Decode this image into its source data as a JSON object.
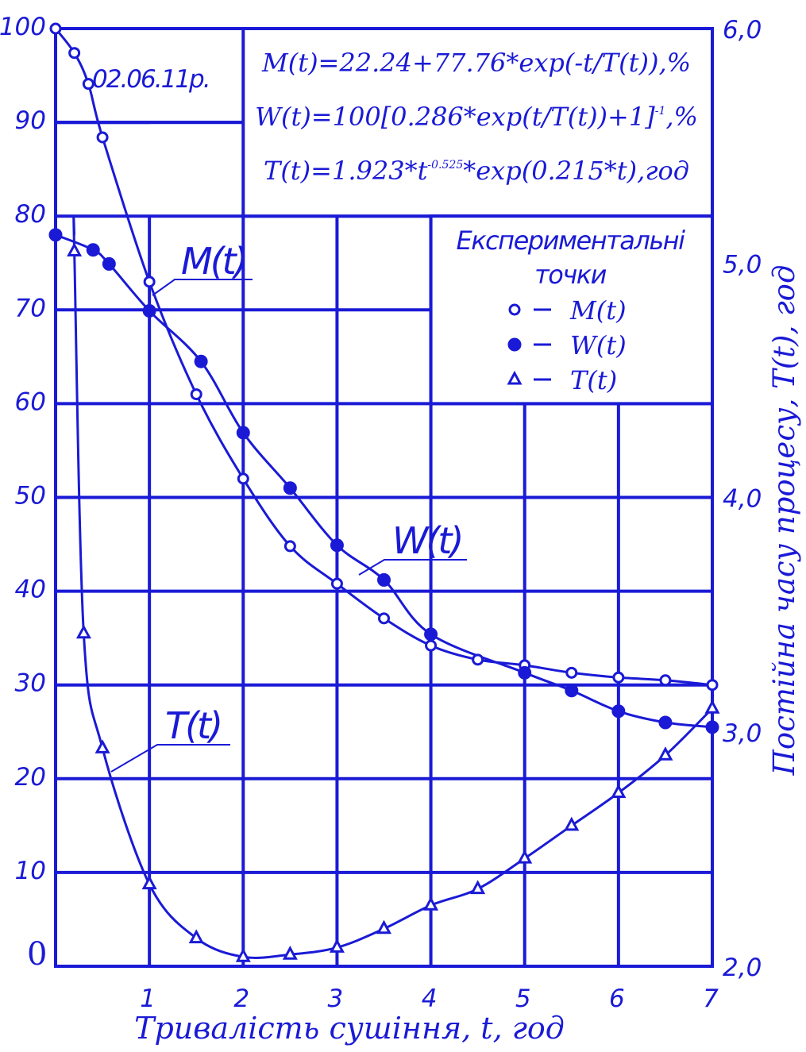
{
  "chart_data": {
    "type": "scatter",
    "title": "",
    "date_label": "02.06.11р.",
    "formulas": [
      {
        "pre": "M(t)=22.24+77.76*exp(-t/T(t)),%",
        "sup": "",
        "post": ""
      },
      {
        "pre": "W(t)=100[0.286*exp(t/T(t))+1]",
        "sup": "-1",
        "post": ",%"
      },
      {
        "pre": "T(t)=1.923*t",
        "sup": "-0.525",
        "post": "*exp(0.215*t),год"
      }
    ],
    "xlabel": "Тривалість сушіння, t, год",
    "y2label": "Постійна часу процесу, T(t), год",
    "xlim": [
      0,
      7
    ],
    "ylim": [
      0,
      100
    ],
    "y2lim": [
      2.0,
      6.0
    ],
    "x_ticks": [
      "1",
      "2",
      "3",
      "4",
      "5",
      "6",
      "7"
    ],
    "y_ticks": [
      "0",
      "10",
      "20",
      "30",
      "40",
      "50",
      "60",
      "70",
      "80",
      "90",
      "100"
    ],
    "y2_ticks": [
      "2,0",
      "3,0",
      "4,0",
      "5,0",
      "6,0"
    ],
    "grid": true,
    "legend": {
      "title_line1": "Експериментальні",
      "title_line2": "точки",
      "entries": [
        "M(t)",
        "W(t)",
        "T(t)"
      ],
      "placement": "top-right"
    },
    "curve_labels": [
      "M(t)",
      "W(t)",
      "T(t)"
    ],
    "series": [
      {
        "name": "M(t)",
        "axis": "left",
        "marker": "open-circle",
        "x": [
          0,
          0.2,
          0.35,
          0.5,
          1.0,
          1.5,
          2.0,
          2.5,
          3.0,
          3.5,
          4.0,
          4.5,
          5.0,
          5.5,
          6.0,
          6.5,
          7.0
        ],
        "y": [
          100,
          97.4,
          94.1,
          88.4,
          73.0,
          61.0,
          52.0,
          44.8,
          40.8,
          37.1,
          34.2,
          32.7,
          32.1,
          31.3,
          30.8,
          30.5,
          30.0
        ]
      },
      {
        "name": "W(t)",
        "axis": "left",
        "marker": "filled-circle",
        "x": [
          0,
          0.4,
          0.57,
          1.0,
          1.55,
          2.0,
          2.5,
          3.0,
          3.5,
          4.0,
          5.0,
          5.5,
          6.0,
          6.5,
          7.0
        ],
        "y": [
          78.0,
          76.4,
          74.9,
          69.9,
          64.5,
          56.9,
          51.0,
          44.9,
          41.2,
          35.4,
          31.3,
          29.4,
          27.2,
          26.0,
          25.5
        ]
      },
      {
        "name": "T(t)",
        "axis": "right",
        "marker": "open-triangle",
        "x": [
          0.2,
          0.3,
          0.5,
          1.0,
          1.5,
          2.0,
          2.5,
          3.0,
          3.5,
          4.0,
          4.5,
          5.0,
          5.5,
          6.0,
          6.5,
          7.0
        ],
        "y": [
          5.05,
          3.42,
          2.93,
          2.35,
          2.12,
          2.04,
          2.05,
          2.08,
          2.16,
          2.26,
          2.33,
          2.46,
          2.6,
          2.74,
          2.9,
          3.1
        ]
      }
    ]
  }
}
